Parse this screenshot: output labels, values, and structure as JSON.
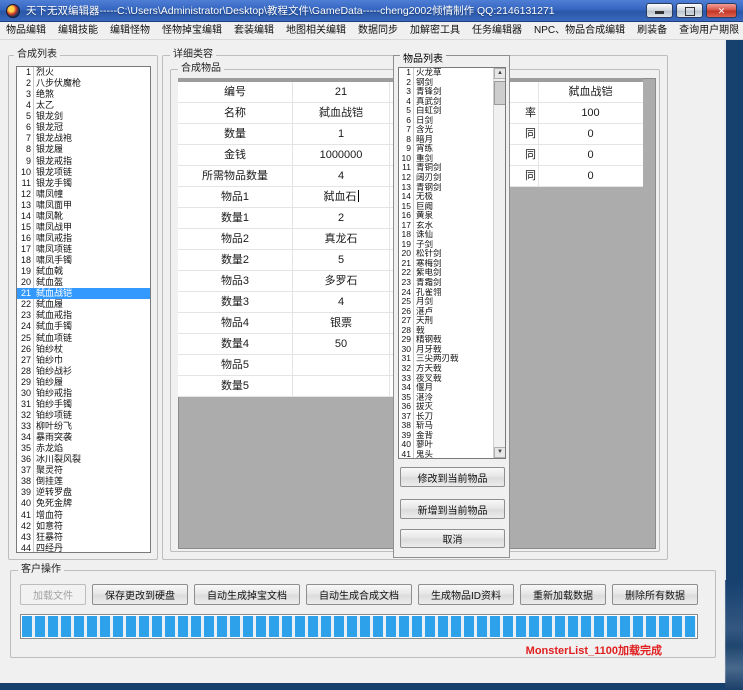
{
  "window": {
    "title": "天下无双编辑器-----C:\\Users\\Administrator\\Desktop\\教程文件\\GameData-----cheng2002倾情制作  QQ:2146131271"
  },
  "menu": {
    "items": [
      "物品编辑",
      "编辑技能",
      "编辑怪物",
      "怪物掉宝编辑",
      "套装编辑",
      "地图相关编辑",
      "数据同步",
      "加解密工具",
      "任务编辑器",
      "NPC、物品合成编辑",
      "刷装备",
      "查询用户期限"
    ]
  },
  "synth_list": {
    "title": "合成列表",
    "selected_number": 21,
    "items": [
      "烈火",
      "八步伏魔枪",
      "绝煞",
      "太乙",
      "银龙剑",
      "银龙冠",
      "银龙战袍",
      "银龙履",
      "银龙戒指",
      "银龙项链",
      "银龙手镯",
      "啸凤幢",
      "啸凤面甲",
      "啸凤靴",
      "啸凤战甲",
      "啸凤戒指",
      "啸凤项链",
      "啸凤手镯",
      "弑血戟",
      "弑血盔",
      "弑血战铠",
      "弑血履",
      "弑血戒指",
      "弑血手镯",
      "弑血项链",
      "铂纱杖",
      "铂纱巾",
      "铂纱战衫",
      "铂纱履",
      "铂纱戒指",
      "铂纱手镯",
      "铂纱项链",
      "柳叶纷飞",
      "暴雨突袭",
      "赤龙焰",
      "冰川裂风裂",
      "聚灵符",
      "倒挂莲",
      "逆转罗盘",
      "免死金牌",
      "增血符",
      "如意符",
      "狂暴符",
      "四经丹"
    ]
  },
  "detail": {
    "title": "详细类容",
    "inner_title": "合成物品",
    "rows": [
      {
        "label": "编号",
        "value": "21"
      },
      {
        "label": "名称",
        "value": "弑血战铠"
      },
      {
        "label": "数量",
        "value": "1"
      },
      {
        "label": "金钱",
        "value": "1000000"
      },
      {
        "label": "所需物品数量",
        "value": "4"
      },
      {
        "label": "物品1",
        "value": "弑血石",
        "caret": true
      },
      {
        "label": "数量1",
        "value": "2"
      },
      {
        "label": "物品2",
        "value": "真龙石"
      },
      {
        "label": "数量2",
        "value": "5"
      },
      {
        "label": "物品3",
        "value": "多罗石"
      },
      {
        "label": "数量3",
        "value": "4"
      },
      {
        "label": "物品4",
        "value": "银票"
      },
      {
        "label": "数量4",
        "value": "50"
      },
      {
        "label": "物品5",
        "value": ""
      },
      {
        "label": "数量5",
        "value": ""
      }
    ],
    "side_rows": [
      {
        "label": "",
        "value": "弑血战铠"
      },
      {
        "label": "率",
        "value": "100"
      },
      {
        "label": "同",
        "value": "0"
      },
      {
        "label": "同",
        "value": "0"
      },
      {
        "label": "同",
        "value": "0"
      }
    ]
  },
  "item_list": {
    "title": "物品列表",
    "items": [
      "火龙草",
      "钢剑",
      "青锋剑",
      "真武剑",
      "白虹剑",
      "日剑",
      "含光",
      "暗月",
      "宵练",
      "重剑",
      "青铜剑",
      "阔刃剑",
      "青钢剑",
      "无极",
      "巨阙",
      "黄泉",
      "玄水",
      "诛仙",
      "子剑",
      "松针剑",
      "寒梅剑",
      "紫电剑",
      "青霜剑",
      "孔雀翎",
      "月剑",
      "湛卢",
      "天刑",
      "戟",
      "精钢戟",
      "月牙戟",
      "三尖两刃戟",
      "方天戟",
      "夜叉戟",
      "偃月",
      "湛泠",
      "拔灭",
      "长刀",
      "斩马",
      "金背",
      "蓼叶",
      "鬼头"
    ],
    "buttons": [
      {
        "label": "修改到当前物品"
      },
      {
        "label": "新增到当前物品"
      },
      {
        "label": "取消"
      }
    ]
  },
  "client_ops": {
    "title": "客户操作",
    "buttons": [
      {
        "label": "加载文件",
        "disabled": true
      },
      {
        "label": "保存更改到硬盘",
        "disabled": false
      },
      {
        "label": "自动生成掉宝文档",
        "disabled": false
      },
      {
        "label": "自动生成合成文档",
        "disabled": false
      },
      {
        "label": "生成物品ID资料",
        "disabled": false
      },
      {
        "label": "重新加载数据",
        "disabled": false
      },
      {
        "label": "删除所有数据",
        "disabled": false
      }
    ],
    "progress_percent": 100,
    "status": "MonsterList_1100加载完成"
  },
  "colors": {
    "selection": "#3399ff",
    "titlebar": "#3566c0",
    "progress_fill": "#2da2ea",
    "progress_gap": "#e9f0f5",
    "status_red": "#e02020"
  }
}
